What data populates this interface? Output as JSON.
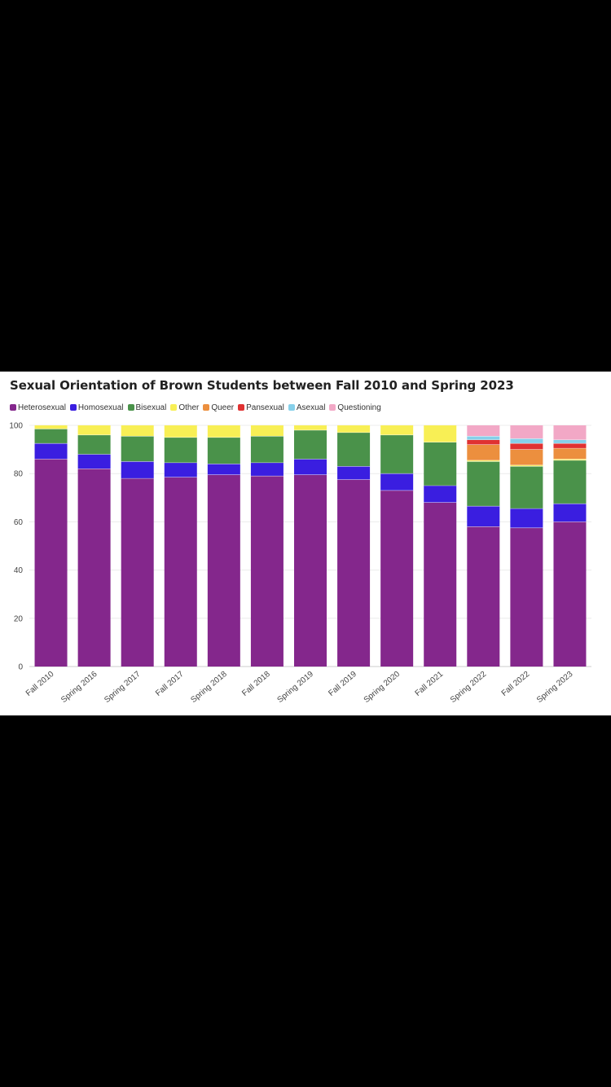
{
  "chart_data": {
    "type": "bar",
    "stacked": true,
    "title": "Sexual Orientation of Brown Students between Fall 2010 and Spring 2023",
    "xlabel": "",
    "ylabel": "",
    "ylim": [
      0,
      100
    ],
    "yticks": [
      0,
      20,
      40,
      60,
      80,
      100
    ],
    "grid": true,
    "legend_position": "top-left",
    "categories": [
      "Fall 2010",
      "Spring 2016",
      "Spring 2017",
      "Fall 2017",
      "Spring 2018",
      "Fall 2018",
      "Spring 2019",
      "Fall 2019",
      "Spring 2020",
      "Fall 2021",
      "Spring 2022",
      "Fall 2022",
      "Spring 2023"
    ],
    "series": [
      {
        "name": "Heterosexual",
        "color": "#84278c",
        "values": [
          86,
          82,
          78,
          78.5,
          79.5,
          79,
          79.5,
          77.5,
          73,
          68,
          58,
          57.5,
          60
        ]
      },
      {
        "name": "Homosexual",
        "color": "#3a1ee0",
        "values": [
          6.5,
          6,
          7,
          6,
          4.5,
          5.5,
          6.5,
          5.5,
          7,
          7,
          8.5,
          8,
          7.5
        ]
      },
      {
        "name": "Bisexual",
        "color": "#4a924a",
        "values": [
          6,
          8,
          10.5,
          10.5,
          11,
          11,
          12,
          14,
          16,
          18,
          18.5,
          17.5,
          18
        ]
      },
      {
        "name": "Other",
        "color": "#f8ef55",
        "values": [
          1.5,
          4,
          4.5,
          5,
          5,
          4.5,
          2,
          3,
          4,
          7,
          0.5,
          0.5,
          0.5
        ]
      },
      {
        "name": "Queer",
        "color": "#ec8f3e",
        "values": [
          0,
          0,
          0,
          0,
          0,
          0,
          0,
          0,
          0,
          0,
          6.5,
          6.5,
          4.5
        ]
      },
      {
        "name": "Pansexual",
        "color": "#e03232",
        "values": [
          0,
          0,
          0,
          0,
          0,
          0,
          0,
          0,
          0,
          0,
          2,
          2.5,
          2
        ]
      },
      {
        "name": "Asexual",
        "color": "#86d0ea",
        "values": [
          0,
          0,
          0,
          0,
          0,
          0,
          0,
          0,
          0,
          0,
          1.5,
          2,
          1.5
        ]
      },
      {
        "name": "Questioning",
        "color": "#f2a8c6",
        "values": [
          0,
          0,
          0,
          0,
          0,
          0,
          0,
          0,
          0,
          0,
          4.5,
          5.5,
          6
        ]
      }
    ]
  }
}
